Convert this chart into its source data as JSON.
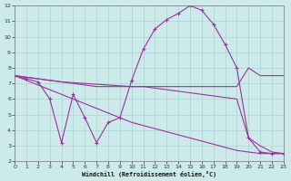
{
  "xlabel": "Windchill (Refroidissement éolien,°C)",
  "bg_color": "#cceaea",
  "grid_color": "#aad4d4",
  "line_color": "#993399",
  "xlim": [
    0,
    23
  ],
  "ylim": [
    2,
    12
  ],
  "yticks": [
    2,
    3,
    4,
    5,
    6,
    7,
    8,
    9,
    10,
    11,
    12
  ],
  "xticks": [
    0,
    1,
    2,
    3,
    4,
    5,
    6,
    7,
    8,
    9,
    10,
    11,
    12,
    13,
    14,
    15,
    16,
    17,
    18,
    19,
    20,
    21,
    22,
    23
  ],
  "s1_x": [
    0,
    1,
    2,
    3,
    4,
    5,
    6,
    7,
    8,
    9,
    10,
    11,
    12,
    13,
    14,
    15,
    16,
    17,
    18,
    19,
    20,
    21,
    22,
    23
  ],
  "s1_y": [
    7.5,
    7.3,
    7.1,
    6.0,
    3.2,
    6.3,
    4.8,
    3.2,
    4.5,
    4.8,
    7.2,
    9.2,
    10.5,
    11.1,
    11.5,
    12.0,
    11.7,
    10.8,
    9.5,
    8.0,
    3.5,
    2.6,
    2.5,
    2.5
  ],
  "s2_x": [
    0,
    1,
    2,
    3,
    4,
    5,
    6,
    7,
    8,
    9,
    10,
    11,
    12,
    13,
    14,
    15,
    16,
    17,
    18,
    19,
    20,
    21,
    22,
    23
  ],
  "s2_y": [
    7.5,
    7.4,
    7.3,
    7.2,
    7.1,
    7.05,
    7.0,
    6.95,
    6.9,
    6.85,
    6.8,
    6.8,
    6.8,
    6.8,
    6.8,
    6.8,
    6.8,
    6.8,
    6.8,
    6.8,
    8.0,
    7.5,
    7.5,
    7.5
  ],
  "s3_x": [
    0,
    1,
    2,
    3,
    4,
    5,
    6,
    7,
    8,
    9,
    10,
    11,
    12,
    13,
    14,
    15,
    16,
    17,
    18,
    19,
    20,
    21,
    22,
    23
  ],
  "s3_y": [
    7.5,
    7.2,
    6.9,
    6.6,
    6.3,
    6.0,
    5.7,
    5.4,
    5.1,
    4.8,
    4.5,
    4.3,
    4.1,
    3.9,
    3.7,
    3.5,
    3.3,
    3.1,
    2.9,
    2.7,
    2.6,
    2.5,
    2.5,
    2.5
  ],
  "s4_x": [
    0,
    1,
    2,
    3,
    4,
    5,
    6,
    7,
    8,
    9,
    10,
    11,
    12,
    13,
    14,
    15,
    16,
    17,
    18,
    19,
    20,
    21,
    22,
    23
  ],
  "s4_y": [
    7.5,
    7.4,
    7.3,
    7.2,
    7.1,
    7.0,
    6.9,
    6.8,
    6.8,
    6.8,
    6.8,
    6.8,
    6.7,
    6.6,
    6.5,
    6.4,
    6.3,
    6.2,
    6.1,
    6.0,
    3.5,
    3.0,
    2.6,
    2.5
  ]
}
